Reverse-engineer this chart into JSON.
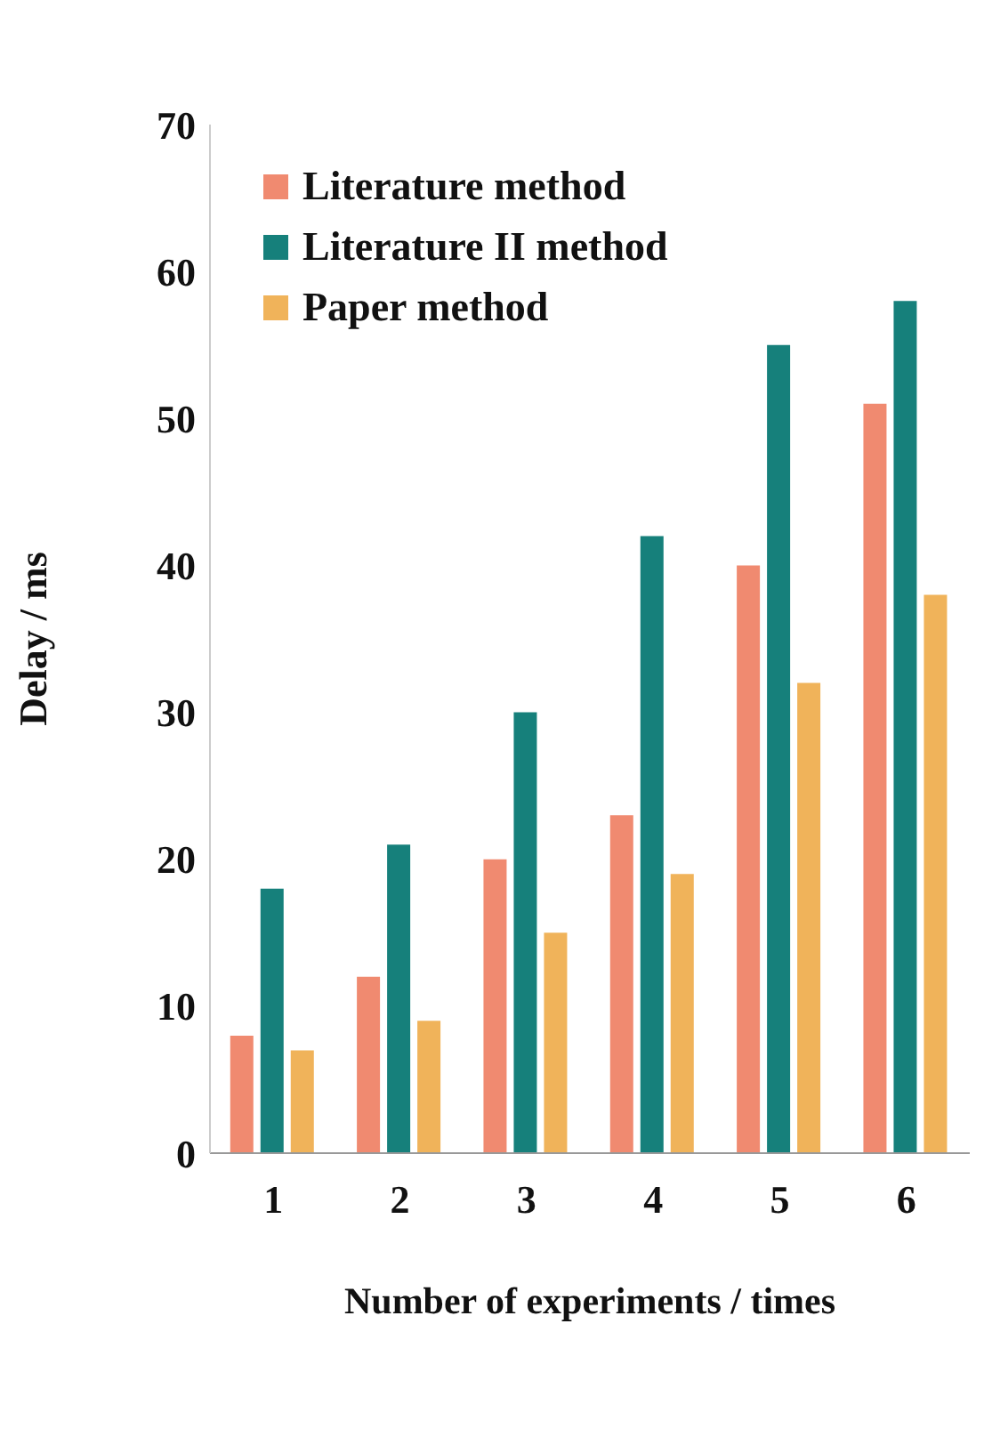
{
  "chart_data": {
    "type": "bar",
    "xlabel": "Number of experiments / times",
    "ylabel": "Delay / ms",
    "categories": [
      "1",
      "2",
      "3",
      "4",
      "5",
      "6"
    ],
    "series": [
      {
        "name": "Literature method",
        "color": "#f08a70",
        "values": [
          8,
          12,
          20,
          23,
          40,
          51
        ]
      },
      {
        "name": "Literature II method",
        "color": "#16807b",
        "values": [
          18,
          21,
          30,
          42,
          55,
          58
        ]
      },
      {
        "name": "Paper method",
        "color": "#f0b35a",
        "values": [
          7,
          9,
          15,
          19,
          32,
          38
        ]
      }
    ],
    "ylim": [
      0,
      70
    ],
    "yticks": [
      0,
      10,
      20,
      30,
      40,
      50,
      60,
      70
    ],
    "grid": false,
    "legend": "top left"
  }
}
